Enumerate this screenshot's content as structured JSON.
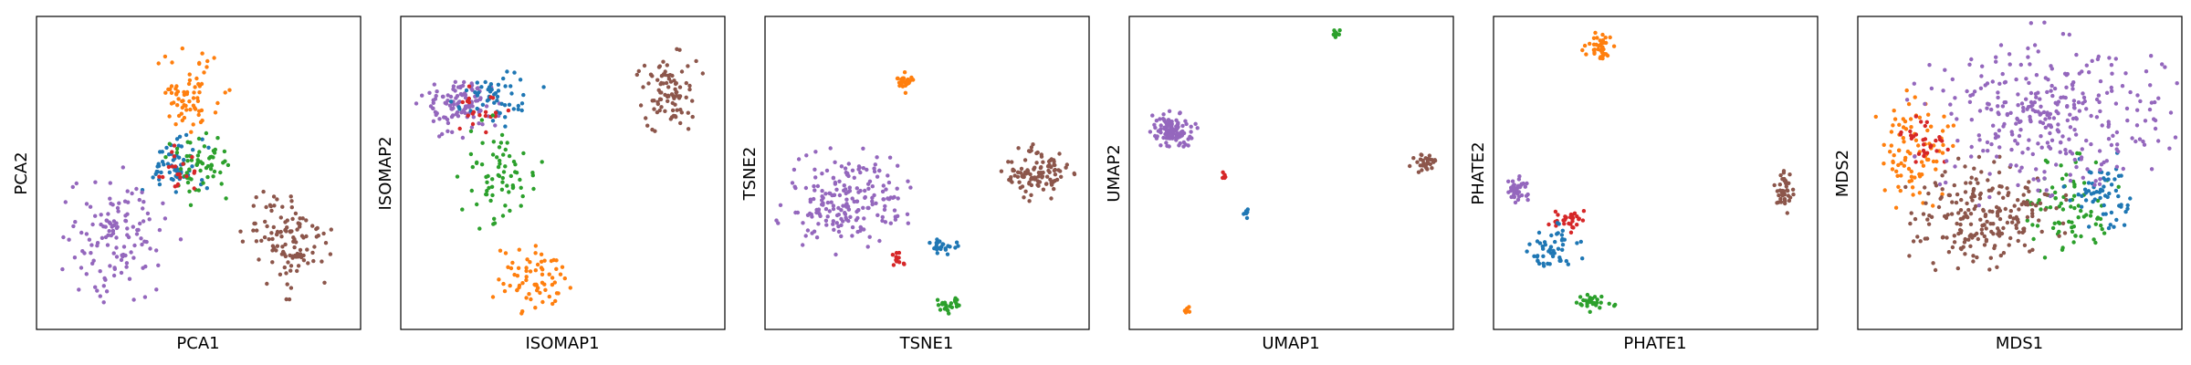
{
  "palette": {
    "blue": "#1f77b4",
    "orange": "#ff7f0e",
    "green": "#2ca02c",
    "red": "#d62728",
    "purple": "#9467bd",
    "brown": "#8c564b"
  },
  "chart_data": [
    {
      "type": "scatter",
      "title": "",
      "xlabel": "PCA1",
      "ylabel": "PCA2",
      "xlim": [
        0,
        100
      ],
      "ylim": [
        0,
        100
      ],
      "ticks": "none",
      "grid": false,
      "legend": "none",
      "series": [
        {
          "color": "orange",
          "cx": 47,
          "cy": 75,
          "rx": 11,
          "ry": 13,
          "n": 70
        },
        {
          "color": "blue",
          "cx": 42,
          "cy": 52,
          "rx": 11,
          "ry": 11,
          "n": 60
        },
        {
          "color": "green",
          "cx": 51,
          "cy": 53,
          "rx": 11,
          "ry": 12,
          "n": 60
        },
        {
          "color": "red",
          "cx": 44,
          "cy": 51,
          "rx": 6,
          "ry": 7,
          "n": 20
        },
        {
          "color": "purple",
          "cx": 25,
          "cy": 30,
          "rx": 17,
          "ry": 19,
          "n": 130
        },
        {
          "color": "brown",
          "cx": 78,
          "cy": 28,
          "rx": 14,
          "ry": 16,
          "n": 120
        }
      ]
    },
    {
      "type": "scatter",
      "title": "",
      "xlabel": "ISOMAP1",
      "ylabel": "ISOMAP2",
      "xlim": [
        0,
        100
      ],
      "ylim": [
        0,
        100
      ],
      "ticks": "none",
      "grid": false,
      "legend": "none",
      "series": [
        {
          "color": "purple",
          "cx": 18,
          "cy": 72,
          "rx": 12,
          "ry": 10,
          "n": 110
        },
        {
          "color": "blue",
          "cx": 30,
          "cy": 74,
          "rx": 13,
          "ry": 9,
          "n": 50
        },
        {
          "color": "red",
          "cx": 24,
          "cy": 70,
          "rx": 8,
          "ry": 7,
          "n": 20
        },
        {
          "color": "green",
          "cx": 30,
          "cy": 50,
          "rx": 12,
          "ry": 17,
          "n": 70
        },
        {
          "color": "orange",
          "cx": 40,
          "cy": 16,
          "rx": 11,
          "ry": 12,
          "n": 70
        },
        {
          "color": "brown",
          "cx": 83,
          "cy": 76,
          "rx": 10,
          "ry": 12,
          "n": 90
        }
      ]
    },
    {
      "type": "scatter",
      "title": "",
      "xlabel": "TSNE1",
      "ylabel": "TSNE2",
      "xlim": [
        0,
        100
      ],
      "ylim": [
        0,
        100
      ],
      "ticks": "none",
      "grid": false,
      "legend": "none",
      "series": [
        {
          "color": "purple",
          "cx": 25,
          "cy": 41,
          "rx": 20,
          "ry": 15,
          "n": 200
        },
        {
          "color": "brown",
          "cx": 84,
          "cy": 50,
          "rx": 10,
          "ry": 8,
          "n": 110
        },
        {
          "color": "orange",
          "cx": 43,
          "cy": 79,
          "rx": 3,
          "ry": 3,
          "n": 25
        },
        {
          "color": "blue",
          "cx": 55,
          "cy": 27,
          "rx": 4,
          "ry": 3,
          "n": 25
        },
        {
          "color": "red",
          "cx": 41,
          "cy": 22,
          "rx": 2.5,
          "ry": 2.5,
          "n": 12
        },
        {
          "color": "green",
          "cx": 57,
          "cy": 8,
          "rx": 4,
          "ry": 3,
          "n": 25
        }
      ]
    },
    {
      "type": "scatter",
      "title": "",
      "xlabel": "UMAP1",
      "ylabel": "UMAP2",
      "xlim": [
        0,
        100
      ],
      "ylim": [
        0,
        100
      ],
      "ticks": "none",
      "grid": false,
      "legend": "none",
      "series": [
        {
          "color": "purple",
          "cx": 13,
          "cy": 64,
          "rx": 7,
          "ry": 6,
          "n": 110
        },
        {
          "color": "brown",
          "cx": 91,
          "cy": 53,
          "rx": 4,
          "ry": 3,
          "n": 30
        },
        {
          "color": "green",
          "cx": 64,
          "cy": 94,
          "rx": 1.8,
          "ry": 1.8,
          "n": 10
        },
        {
          "color": "red",
          "cx": 29,
          "cy": 49,
          "rx": 1.2,
          "ry": 1.2,
          "n": 6
        },
        {
          "color": "blue",
          "cx": 36,
          "cy": 37,
          "rx": 1.5,
          "ry": 1.5,
          "n": 8
        },
        {
          "color": "orange",
          "cx": 18,
          "cy": 6,
          "rx": 1.5,
          "ry": 1.5,
          "n": 8
        }
      ]
    },
    {
      "type": "scatter",
      "title": "",
      "xlabel": "PHATE1",
      "ylabel": "PHATE2",
      "xlim": [
        0,
        100
      ],
      "ylim": [
        0,
        100
      ],
      "ticks": "none",
      "grid": false,
      "legend": "none",
      "series": [
        {
          "color": "orange",
          "cx": 33,
          "cy": 90,
          "rx": 6,
          "ry": 5,
          "n": 40
        },
        {
          "color": "purple",
          "cx": 8,
          "cy": 45,
          "rx": 4,
          "ry": 4,
          "n": 40
        },
        {
          "color": "red",
          "cx": 23,
          "cy": 35,
          "rx": 6,
          "ry": 4,
          "n": 30
        },
        {
          "color": "blue",
          "cx": 19,
          "cy": 26,
          "rx": 8,
          "ry": 7,
          "n": 50
        },
        {
          "color": "green",
          "cx": 31,
          "cy": 9,
          "rx": 6,
          "ry": 3,
          "n": 30
        },
        {
          "color": "brown",
          "cx": 90,
          "cy": 44,
          "rx": 3,
          "ry": 7,
          "n": 40
        }
      ]
    },
    {
      "type": "scatter",
      "title": "",
      "xlabel": "MDS1",
      "ylabel": "MDS2",
      "xlim": [
        0,
        100
      ],
      "ylim": [
        0,
        100
      ],
      "ticks": "none",
      "grid": false,
      "legend": "none",
      "series": [
        {
          "color": "orange",
          "cx": 17,
          "cy": 57,
          "rx": 12,
          "ry": 17,
          "n": 90
        },
        {
          "color": "green",
          "cx": 66,
          "cy": 38,
          "rx": 14,
          "ry": 16,
          "n": 80
        },
        {
          "color": "blue",
          "cx": 75,
          "cy": 44,
          "rx": 10,
          "ry": 12,
          "n": 60
        },
        {
          "color": "red",
          "cx": 21,
          "cy": 60,
          "rx": 7,
          "ry": 8,
          "n": 30
        },
        {
          "color": "brown",
          "cx": 38,
          "cy": 36,
          "rx": 25,
          "ry": 17,
          "n": 220
        },
        {
          "color": "purple",
          "cx": 58,
          "cy": 67,
          "rx": 38,
          "ry": 27,
          "n": 320
        }
      ]
    }
  ]
}
